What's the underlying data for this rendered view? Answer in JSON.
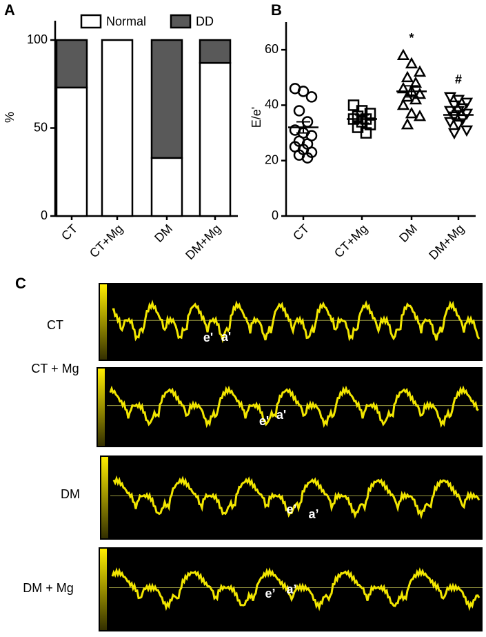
{
  "chart_data": [
    {
      "panel": "A",
      "type": "stacked_bar",
      "y_label": "%",
      "categories": [
        "CT",
        "CT+Mg",
        "DM",
        "DM+Mg"
      ],
      "series": [
        {
          "name": "Normal",
          "color": "#ffffff",
          "values": [
            73,
            100,
            33,
            87
          ]
        },
        {
          "name": "DD",
          "color": "#595959",
          "values": [
            27,
            0,
            67,
            13
          ]
        }
      ],
      "ylim": [
        0,
        100
      ],
      "yticks": [
        0,
        50,
        100
      ]
    },
    {
      "panel": "B",
      "type": "scatter",
      "y_label": "E/e'",
      "categories": [
        "CT",
        "CT+Mg",
        "DM",
        "DM+Mg"
      ],
      "series": [
        {
          "marker": "circle",
          "values": [
            46,
            45,
            43,
            38,
            34,
            31,
            30,
            29,
            27,
            26,
            25,
            24,
            23,
            22,
            21
          ],
          "mean": 32,
          "error": 2
        },
        {
          "marker": "square",
          "values": [
            40,
            38,
            37,
            36,
            35,
            35,
            34,
            33,
            32,
            30
          ],
          "mean": 35,
          "error": 1.5
        },
        {
          "marker": "triangle",
          "values": [
            58,
            55,
            52,
            50,
            48,
            46,
            45,
            44,
            43,
            42,
            40,
            37,
            36,
            33
          ],
          "mean": 45,
          "error": 2,
          "annotation": "*"
        },
        {
          "marker": "triangle-down",
          "values": [
            43,
            42,
            41,
            40,
            39,
            38,
            38,
            37,
            36,
            35,
            34,
            33,
            31,
            30
          ],
          "mean": 36.5,
          "error": 1.5,
          "annotation": "#"
        }
      ],
      "ylim": [
        0,
        70
      ],
      "yticks": [
        0,
        20,
        40,
        60
      ]
    }
  ],
  "panel_c": {
    "label": "C",
    "rows": [
      {
        "label": "CT",
        "e_label": "e'",
        "a_label": "a'"
      },
      {
        "label": "CT + Mg",
        "e_label": "e'",
        "a_label": "a'"
      },
      {
        "label": "DM",
        "e_label": "e’",
        "a_label": "a’"
      },
      {
        "label": "DM + Mg",
        "e_label": "e’",
        "a_label": "a’"
      }
    ]
  }
}
